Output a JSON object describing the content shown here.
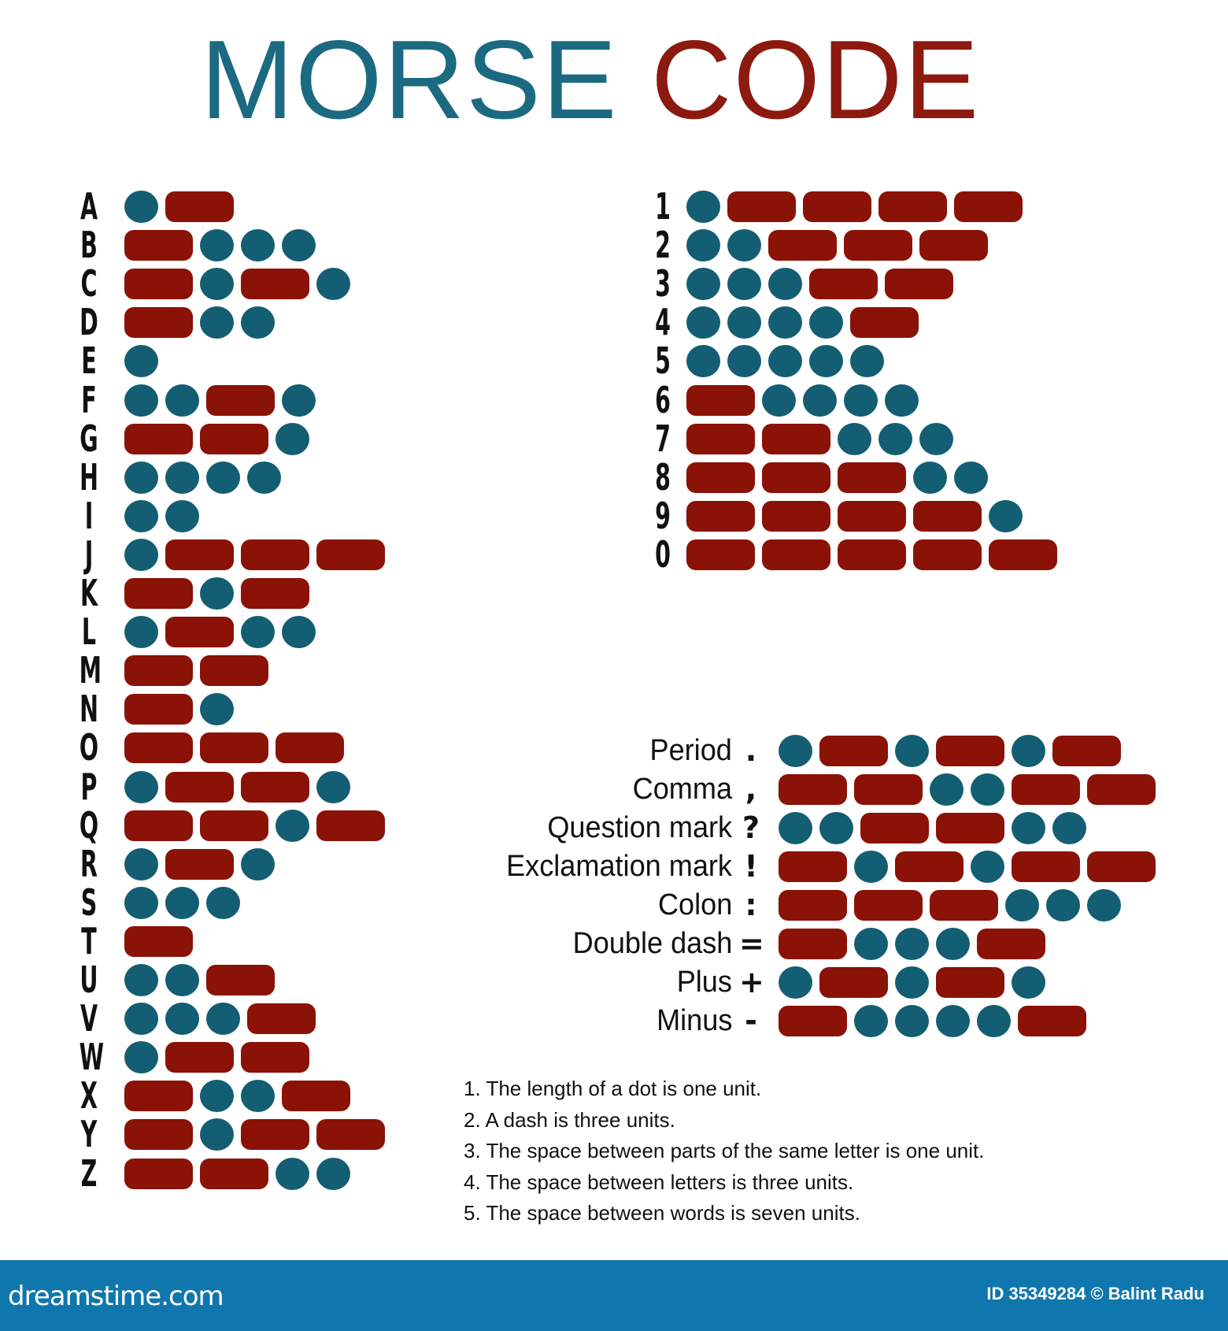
{
  "title": {
    "word1": "MORSE",
    "word2": "CODE",
    "color1": "#1b6a82",
    "color2": "#8c1a0e"
  },
  "colors": {
    "dot": "#135e72",
    "dash": "#8b1207",
    "footer": "#1077ae"
  },
  "letters": [
    {
      "char": "A",
      "code": ".-"
    },
    {
      "char": "B",
      "code": "-..."
    },
    {
      "char": "C",
      "code": "-.-."
    },
    {
      "char": "D",
      "code": "-.."
    },
    {
      "char": "E",
      "code": "."
    },
    {
      "char": "F",
      "code": "..-."
    },
    {
      "char": "G",
      "code": "--."
    },
    {
      "char": "H",
      "code": "...."
    },
    {
      "char": "I",
      "code": ".."
    },
    {
      "char": "J",
      "code": ".---"
    },
    {
      "char": "K",
      "code": "-.-"
    },
    {
      "char": "L",
      "code": ".-.."
    },
    {
      "char": "M",
      "code": "--"
    },
    {
      "char": "N",
      "code": "-."
    },
    {
      "char": "O",
      "code": "---"
    },
    {
      "char": "P",
      "code": ".--."
    },
    {
      "char": "Q",
      "code": "--.-"
    },
    {
      "char": "R",
      "code": ".-."
    },
    {
      "char": "S",
      "code": "..."
    },
    {
      "char": "T",
      "code": "-"
    },
    {
      "char": "U",
      "code": "..-"
    },
    {
      "char": "V",
      "code": "...-"
    },
    {
      "char": "W",
      "code": ".--"
    },
    {
      "char": "X",
      "code": "-..-"
    },
    {
      "char": "Y",
      "code": "-.--"
    },
    {
      "char": "Z",
      "code": "--.."
    }
  ],
  "numbers": [
    {
      "char": "1",
      "code": ".----"
    },
    {
      "char": "2",
      "code": "..---"
    },
    {
      "char": "3",
      "code": "...--"
    },
    {
      "char": "4",
      "code": "....-"
    },
    {
      "char": "5",
      "code": "....."
    },
    {
      "char": "6",
      "code": "-...."
    },
    {
      "char": "7",
      "code": "--..."
    },
    {
      "char": "8",
      "code": "---.."
    },
    {
      "char": "9",
      "code": "----."
    },
    {
      "char": "0",
      "code": "-----"
    }
  ],
  "punctuation": [
    {
      "label": "Period",
      "symbol": ".",
      "code": ".-.-.-"
    },
    {
      "label": "Comma",
      "symbol": ",",
      "code": "--..--"
    },
    {
      "label": "Question mark",
      "symbol": "?",
      "code": "..--.."
    },
    {
      "label": "Exclamation mark",
      "symbol": "!",
      "code": "-.-.--"
    },
    {
      "label": "Colon",
      "symbol": ":",
      "code": "---..."
    },
    {
      "label": "Double dash",
      "symbol": "=",
      "code": "-...-"
    },
    {
      "label": "Plus",
      "symbol": "+",
      "code": ".-.-."
    },
    {
      "label": "Minus",
      "symbol": "-",
      "code": "-....-"
    }
  ],
  "notes": [
    "1. The length of a dot is one unit.",
    "2. A dash is three units.",
    "3. The space between parts of the same letter is one unit.",
    "4. The space between letters is three units.",
    "5. The space between words is seven units."
  ],
  "footer": {
    "logo": "dreamstime.com",
    "credit": "ID 35349284 © Balint Radu"
  }
}
